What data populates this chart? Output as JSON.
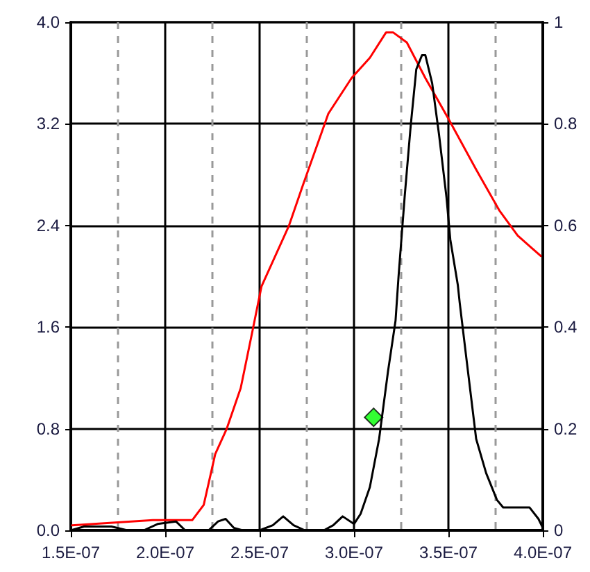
{
  "chart_data": {
    "type": "line",
    "grid": true,
    "xlim": [
      1.5e-07,
      4e-07
    ],
    "xticks": [
      {
        "value": 1.5e-07,
        "label": "1.5E-07"
      },
      {
        "value": 1.75e-07,
        "label": null
      },
      {
        "value": 2e-07,
        "label": "2.0E-07"
      },
      {
        "value": 2.25e-07,
        "label": null
      },
      {
        "value": 2.5e-07,
        "label": "2.5E-07"
      },
      {
        "value": 2.75e-07,
        "label": null
      },
      {
        "value": 3e-07,
        "label": "3.0E-07"
      },
      {
        "value": 3.25e-07,
        "label": null
      },
      {
        "value": 3.5e-07,
        "label": "3.5E-07"
      },
      {
        "value": 3.75e-07,
        "label": null
      },
      {
        "value": 4e-07,
        "label": "4.0E-07"
      }
    ],
    "ylim": [
      0,
      4
    ],
    "yticks": [
      {
        "value": 0,
        "label": "0.0"
      },
      {
        "value": 0.8,
        "label": "0.8"
      },
      {
        "value": 1.6,
        "label": "1.6"
      },
      {
        "value": 2.4,
        "label": "2.4"
      },
      {
        "value": 3.2,
        "label": "3.2"
      },
      {
        "value": 4,
        "label": "4.0"
      }
    ],
    "y2lim": [
      0,
      1
    ],
    "y2ticks": [
      0,
      0.2,
      0.4,
      0.6,
      0.8,
      1
    ],
    "series": [
      {
        "color": "#ff0000",
        "axis": "y2",
        "marker": "none",
        "line_style": "solid",
        "x": [
          1.507e-07,
          1.935e-07,
          1.996e-07,
          2.143e-07,
          2.204e-07,
          2.265e-07,
          2.326e-07,
          2.4e-07,
          2.461e-07,
          2.51e-07,
          2.656e-07,
          2.73e-07,
          2.864e-07,
          2.987e-07,
          3.084e-07,
          3.17e-07,
          3.207e-07,
          3.28e-07,
          3.378e-07,
          3.5e-07,
          3.647e-07,
          3.769e-07,
          3.867e-07,
          3.989e-07
        ],
        "values": [
          0.01,
          0.02,
          0.02,
          0.02,
          0.05,
          0.15,
          0.2,
          0.28,
          0.39,
          0.48,
          0.6,
          0.68,
          0.82,
          0.89,
          0.93,
          0.98,
          0.98,
          0.96,
          0.89,
          0.81,
          0.71,
          0.63,
          0.58,
          0.54
        ]
      },
      {
        "color": "#000000",
        "axis": "y",
        "marker": "none",
        "line_style": "solid",
        "x": [
          1.5e-07,
          1.57e-07,
          1.715e-07,
          1.8e-07,
          1.886e-07,
          1.96e-07,
          2.057e-07,
          2.106e-07,
          2.23e-07,
          2.28e-07,
          2.32e-07,
          2.363e-07,
          2.41e-07,
          2.5e-07,
          2.57e-07,
          2.625e-07,
          2.68e-07,
          2.74e-07,
          2.84e-07,
          2.89e-07,
          2.94e-07,
          3e-07,
          3.035e-07,
          3.084e-07,
          3.133e-07,
          3.18e-07,
          3.22e-07,
          3.236e-07,
          3.268e-07,
          3.3e-07,
          3.33e-07,
          3.36e-07,
          3.378e-07,
          3.414e-07,
          3.45e-07,
          3.49e-07,
          3.51e-07,
          3.55e-07,
          3.56e-07,
          3.598e-07,
          3.647e-07,
          3.7e-07,
          3.757e-07,
          3.79e-07,
          3.93e-07,
          3.977e-07,
          4e-07
        ],
        "values": [
          0.0,
          0.03,
          0.03,
          0.0,
          0.0,
          0.05,
          0.07,
          0.0,
          0.0,
          0.07,
          0.09,
          0.02,
          0.0,
          0.0,
          0.04,
          0.11,
          0.04,
          0.0,
          0.0,
          0.04,
          0.11,
          0.05,
          0.13,
          0.34,
          0.72,
          1.25,
          1.65,
          2.0,
          2.62,
          3.18,
          3.63,
          3.74,
          3.74,
          3.52,
          3.12,
          2.62,
          2.29,
          1.93,
          1.79,
          1.32,
          0.72,
          0.45,
          0.24,
          0.18,
          0.18,
          0.09,
          0.02
        ]
      },
      {
        "type": "scatter",
        "color": "#00ff00",
        "axis": "y",
        "marker": "diamond",
        "x": [
          3.104e-07
        ],
        "values": [
          0.89
        ]
      }
    ]
  }
}
